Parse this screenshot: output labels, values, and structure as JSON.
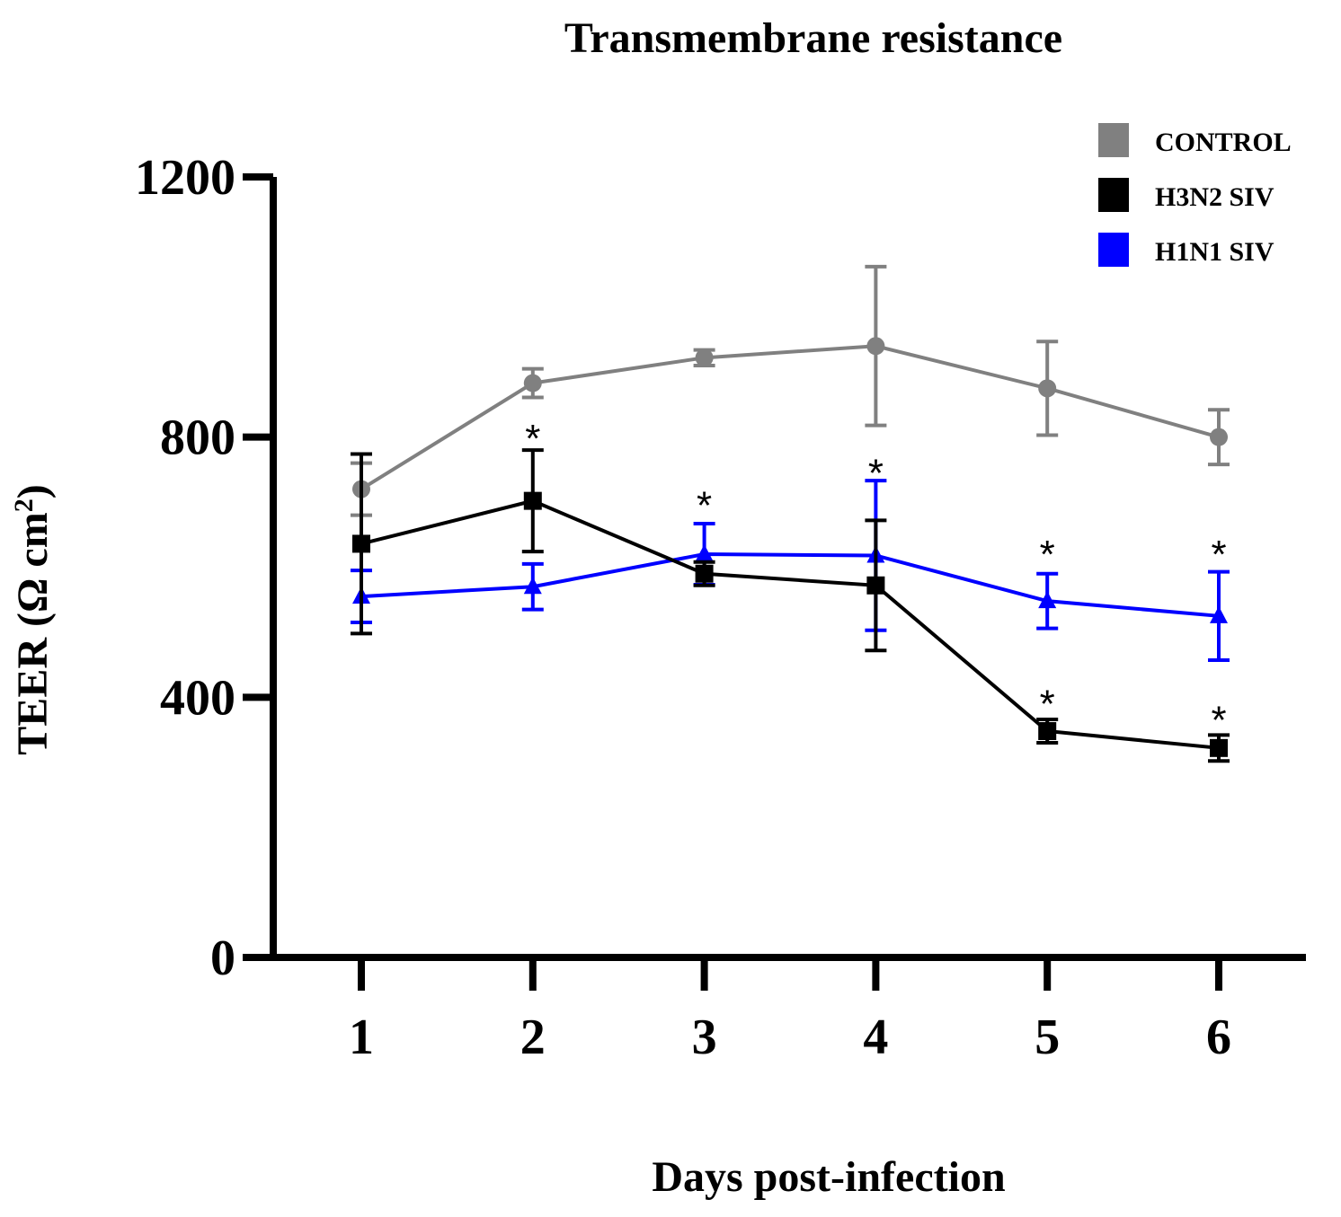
{
  "chart_data": {
    "type": "line",
    "title": "Transmembrane resistance",
    "xlabel": "Days post-infection",
    "ylabel_main": "TEER (Ω cm",
    "ylabel_sup": "2",
    "ylabel_close": ")",
    "x": [
      1,
      2,
      3,
      4,
      5,
      6
    ],
    "x_tick_labels": [
      "1",
      "2",
      "3",
      "4",
      "5",
      "6"
    ],
    "y_ticks": [
      0,
      400,
      800,
      1200
    ],
    "y_tick_labels": [
      "0",
      "400",
      "800",
      "1200"
    ],
    "ylim": [
      0,
      1200
    ],
    "xlim": [
      0.5,
      6.5
    ],
    "grid": false,
    "legend_position": "top-right",
    "series": [
      {
        "name": "CONTROL",
        "color": "#808080",
        "marker": "circle",
        "values": [
          720,
          883,
          922,
          940,
          875,
          800
        ],
        "errors": [
          40,
          22,
          12,
          122,
          72,
          42
        ]
      },
      {
        "name": "H3N2 SIV",
        "color": "#000000",
        "marker": "square",
        "values": [
          636,
          702,
          590,
          572,
          348,
          322
        ],
        "errors": [
          138,
          78,
          18,
          100,
          18,
          20
        ]
      },
      {
        "name": "H1N1 SIV",
        "color": "#0000ff",
        "marker": "triangle",
        "values": [
          555,
          570,
          620,
          618,
          548,
          525
        ],
        "errors": [
          40,
          35,
          47,
          115,
          42,
          68
        ]
      }
    ],
    "annotations": [
      {
        "x": 2,
        "y": 808,
        "text": "*"
      },
      {
        "x": 3,
        "y": 705,
        "text": "*"
      },
      {
        "x": 4,
        "y": 755,
        "text": "*"
      },
      {
        "x": 5,
        "y": 630,
        "text": "*"
      },
      {
        "x": 6,
        "y": 630,
        "text": "*"
      },
      {
        "x": 5,
        "y": 400,
        "text": "*"
      },
      {
        "x": 6,
        "y": 375,
        "text": "*"
      }
    ]
  }
}
